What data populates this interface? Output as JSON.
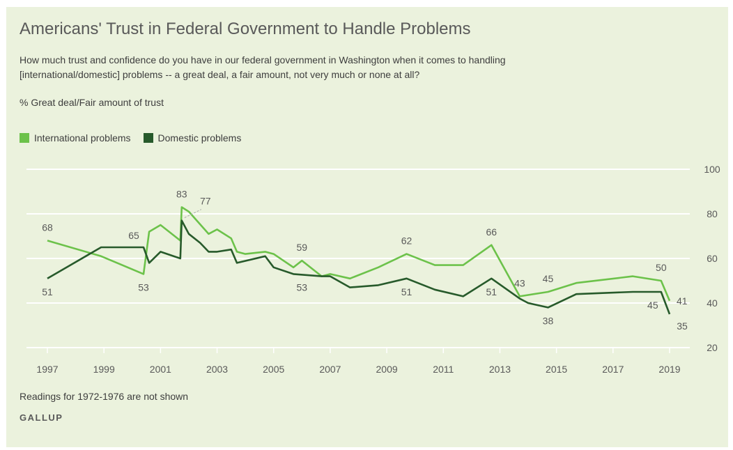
{
  "title": "Americans' Trust in Federal Government to Handle Problems",
  "subtitle": "How much trust and confidence do you have in our federal government in Washington when it comes to handling [international/domestic] problems -- a great deal, a fair amount, not very much or none at all?",
  "measure": "% Great deal/Fair amount of trust",
  "note": "Readings for 1972-1976 are not shown",
  "source": "GALLUP",
  "colors": {
    "background": "#ebf2dd",
    "international": "#6cc24a",
    "domestic": "#275a2b",
    "grid": "#ffffff",
    "text": "#595959"
  },
  "chart_data": {
    "type": "line",
    "xlim": [
      1997,
      2019.2
    ],
    "ylim": [
      20,
      100
    ],
    "x_ticks": [
      1997,
      1999,
      2001,
      2003,
      2005,
      2007,
      2009,
      2011,
      2013,
      2015,
      2017,
      2019
    ],
    "x_tick_labels": [
      "1997",
      "1999",
      "2001",
      "2003",
      "2005",
      "2007",
      "2009",
      "2011",
      "2013",
      "2015",
      "2017",
      "2019"
    ],
    "y_ticks": [
      20,
      40,
      60,
      80,
      100
    ],
    "y_tick_labels": [
      "20",
      "40",
      "60",
      "80",
      "100"
    ],
    "grid": true,
    "legend": "top-left",
    "series": [
      {
        "name": "International problems",
        "color": "#6cc24a",
        "points": [
          [
            1997,
            68
          ],
          [
            1998.9,
            61
          ],
          [
            2000.4,
            53
          ],
          [
            2000.6,
            72
          ],
          [
            2001.0,
            75
          ],
          [
            2001.7,
            68
          ],
          [
            2001.75,
            83
          ],
          [
            2002.0,
            81
          ],
          [
            2002.7,
            71
          ],
          [
            2003.0,
            73
          ],
          [
            2003.5,
            69
          ],
          [
            2003.7,
            63
          ],
          [
            2004.0,
            62
          ],
          [
            2004.7,
            63
          ],
          [
            2005.0,
            62
          ],
          [
            2005.7,
            56
          ],
          [
            2006.0,
            59
          ],
          [
            2006.7,
            52
          ],
          [
            2007.0,
            53
          ],
          [
            2007.7,
            51
          ],
          [
            2008.7,
            56
          ],
          [
            2009.7,
            62
          ],
          [
            2010.7,
            57
          ],
          [
            2011.7,
            57
          ],
          [
            2012.7,
            66
          ],
          [
            2013.7,
            43
          ],
          [
            2014.7,
            45
          ],
          [
            2015.7,
            49
          ],
          [
            2017.7,
            52
          ],
          [
            2018.7,
            50
          ],
          [
            2019.0,
            41
          ]
        ]
      },
      {
        "name": "Domestic problems",
        "color": "#275a2b",
        "points": [
          [
            1997,
            51
          ],
          [
            1998.9,
            65
          ],
          [
            2000.4,
            65
          ],
          [
            2000.6,
            58
          ],
          [
            2001.0,
            63
          ],
          [
            2001.7,
            60
          ],
          [
            2001.75,
            77
          ],
          [
            2002.0,
            71
          ],
          [
            2002.4,
            67
          ],
          [
            2002.7,
            63
          ],
          [
            2003.0,
            63
          ],
          [
            2003.5,
            64
          ],
          [
            2003.7,
            58
          ],
          [
            2004.7,
            61
          ],
          [
            2005.0,
            56
          ],
          [
            2005.7,
            53
          ],
          [
            2006.7,
            52
          ],
          [
            2007.0,
            52
          ],
          [
            2007.7,
            47
          ],
          [
            2008.7,
            48
          ],
          [
            2009.7,
            51
          ],
          [
            2010.7,
            46
          ],
          [
            2011.7,
            43
          ],
          [
            2012.7,
            51
          ],
          [
            2013.7,
            42
          ],
          [
            2014.0,
            40
          ],
          [
            2014.7,
            38
          ],
          [
            2015.7,
            44
          ],
          [
            2017.7,
            45
          ],
          [
            2018.7,
            45
          ],
          [
            2019.0,
            35
          ]
        ]
      }
    ],
    "data_labels": [
      {
        "series": "International problems",
        "x": 1997,
        "y": 68,
        "text": "68",
        "pos": "above"
      },
      {
        "series": "International problems",
        "x": 2000.4,
        "y": 53,
        "text": "53",
        "pos": "below"
      },
      {
        "series": "International problems",
        "x": 2001.75,
        "y": 83,
        "text": "83",
        "pos": "above"
      },
      {
        "series": "International problems",
        "x": 2006.0,
        "y": 59,
        "text": "59",
        "pos": "above"
      },
      {
        "series": "International problems",
        "x": 2009.7,
        "y": 62,
        "text": "62",
        "pos": "above"
      },
      {
        "series": "International problems",
        "x": 2012.7,
        "y": 66,
        "text": "66",
        "pos": "above"
      },
      {
        "series": "International problems",
        "x": 2013.7,
        "y": 43,
        "text": "43",
        "pos": "above"
      },
      {
        "series": "International problems",
        "x": 2014.7,
        "y": 45,
        "text": "45",
        "pos": "above"
      },
      {
        "series": "International problems",
        "x": 2018.7,
        "y": 50,
        "text": "50",
        "pos": "above"
      },
      {
        "series": "International problems",
        "x": 2019.0,
        "y": 41,
        "text": "41",
        "pos": "right"
      },
      {
        "series": "Domestic problems",
        "x": 1997,
        "y": 51,
        "text": "51",
        "pos": "below"
      },
      {
        "series": "Domestic problems",
        "x": 2000.4,
        "y": 65,
        "text": "65",
        "pos": "above-left"
      },
      {
        "series": "Domestic problems",
        "x": 2001.75,
        "y": 77,
        "text": "77",
        "pos": "callout"
      },
      {
        "series": "Domestic problems",
        "x": 2006.0,
        "y": 53,
        "text": "53",
        "pos": "below"
      },
      {
        "series": "Domestic problems",
        "x": 2009.7,
        "y": 51,
        "text": "51",
        "pos": "below"
      },
      {
        "series": "Domestic problems",
        "x": 2012.7,
        "y": 51,
        "text": "51",
        "pos": "below"
      },
      {
        "series": "Domestic problems",
        "x": 2014.7,
        "y": 38,
        "text": "38",
        "pos": "below"
      },
      {
        "series": "Domestic problems",
        "x": 2018.7,
        "y": 45,
        "text": "45",
        "pos": "below-left"
      },
      {
        "series": "Domestic problems",
        "x": 2019.0,
        "y": 35,
        "text": "35",
        "pos": "below-right"
      }
    ]
  }
}
